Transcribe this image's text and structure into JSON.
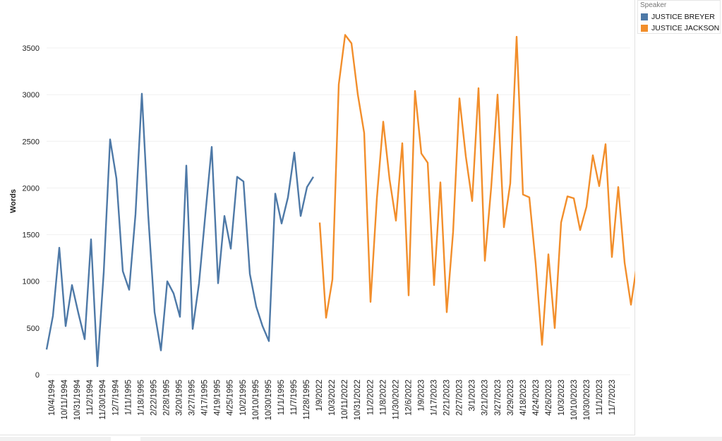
{
  "legend": {
    "title": "Speaker",
    "items": [
      {
        "label": "JUSTICE BREYER",
        "color": "#4e79a7"
      },
      {
        "label": "JUSTICE JACKSON",
        "color": "#f28e2b"
      }
    ]
  },
  "chart_data": {
    "type": "line",
    "ylabel": "Words",
    "xlabel": "",
    "ylim": [
      0,
      3800
    ],
    "yticks": [
      0,
      500,
      1000,
      1500,
      2000,
      2500,
      3000,
      3500
    ],
    "grid": true,
    "legend_position": "top-right",
    "x_tick_labels": [
      "10/4/1994",
      "10/11/1994",
      "10/31/1994",
      "11/2/1994",
      "11/30/1994",
      "12/7/1994",
      "1/11/1995",
      "1/18/1995",
      "2/22/1995",
      "2/28/1995",
      "3/20/1995",
      "3/27/1995",
      "4/17/1995",
      "4/19/1995",
      "4/25/1995",
      "10/2/1995",
      "10/10/1995",
      "10/30/1995",
      "11/1/1995",
      "11/7/1995",
      "11/28/1995",
      "1/9/2022",
      "10/3/2022",
      "10/11/2022",
      "10/31/2022",
      "11/2/2022",
      "11/8/2022",
      "11/30/2022",
      "12/6/2022",
      "1/9/2023",
      "1/17/2023",
      "2/21/2023",
      "2/27/2023",
      "3/1/2023",
      "3/21/2023",
      "3/27/2023",
      "3/29/2023",
      "4/18/2023",
      "4/24/2023",
      "4/26/2023",
      "10/3/2023",
      "10/10/2023",
      "10/30/2023",
      "11/1/2023",
      "11/7/2023"
    ],
    "series": [
      {
        "name": "JUSTICE BREYER",
        "color": "#4e79a7",
        "start_index": 0,
        "values": [
          270,
          630,
          1360,
          520,
          960,
          660,
          380,
          1450,
          90,
          1100,
          2520,
          2100,
          1110,
          910,
          1720,
          3010,
          1710,
          670,
          260,
          1000,
          870,
          620,
          2240,
          490,
          980,
          1720,
          2440,
          980,
          1700,
          1350,
          2120,
          2070,
          1080,
          730,
          520,
          360,
          1940,
          1620,
          1900,
          2380,
          1700,
          2010,
          2120
        ]
      },
      {
        "name": "JUSTICE JACKSON",
        "color": "#f28e2b",
        "start_index": 43,
        "values": [
          1630,
          610,
          1020,
          3110,
          3640,
          3550,
          3000,
          2590,
          780,
          1890,
          2710,
          2090,
          1650,
          2480,
          850,
          3040,
          2370,
          2270,
          960,
          2060,
          670,
          1530,
          2960,
          2340,
          1860,
          3070,
          1220,
          2010,
          3000,
          1580,
          2050,
          3620,
          1930,
          1900,
          1190,
          320,
          1290,
          500,
          1630,
          1910,
          1890,
          1550,
          1800,
          2350,
          2020,
          2470,
          1260,
          2010,
          1200,
          750,
          1210
        ]
      }
    ]
  }
}
